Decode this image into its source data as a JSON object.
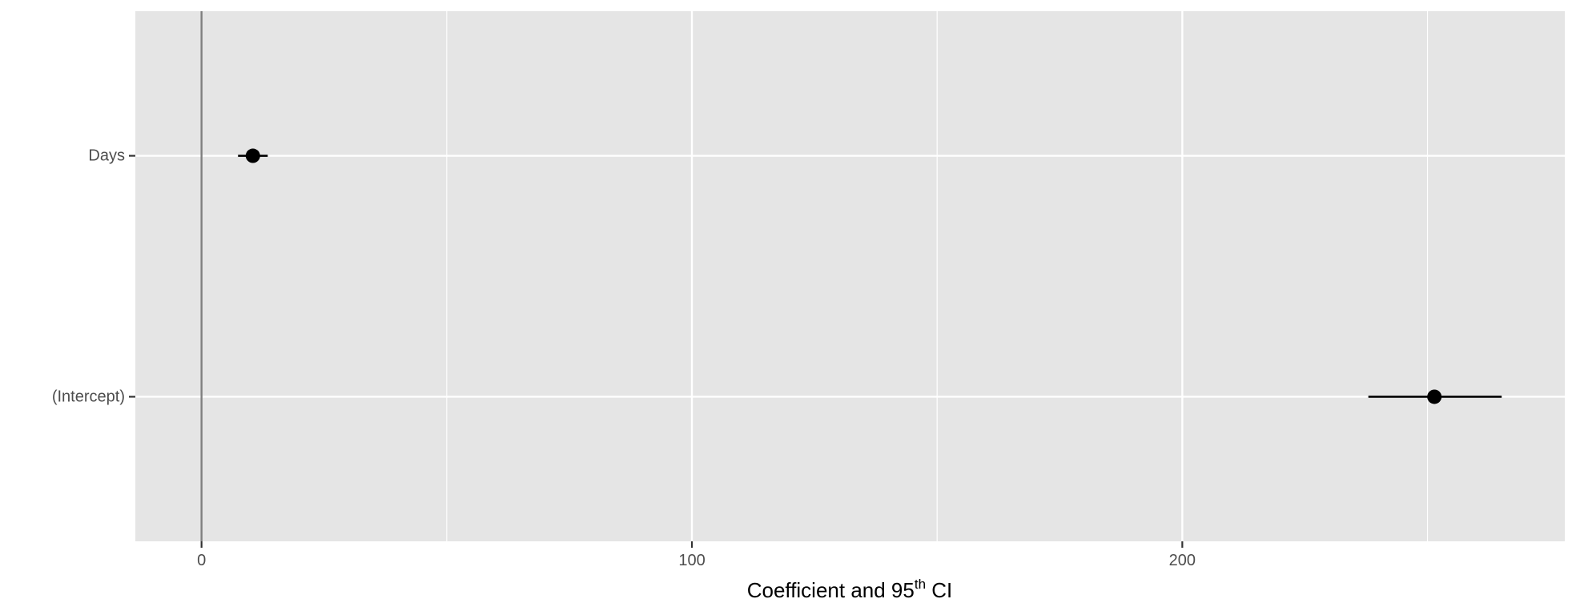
{
  "chart_data": {
    "type": "scatter",
    "subtype": "coefficient-plot",
    "title": "",
    "xlabel_main": "Coefficient and 95",
    "xlabel_sup": "th",
    "xlabel_end": " CI",
    "ylabel": "",
    "xlim": [
      -13.5,
      278
    ],
    "x_major_ticks": [
      0,
      100,
      200
    ],
    "x_tick_labels": [
      "0",
      "100",
      "200"
    ],
    "x_minor_gridlines": [
      50,
      150,
      250
    ],
    "reference_line": 0,
    "grid": true,
    "legend": "none",
    "categories": [
      "Days",
      "(Intercept)"
    ],
    "estimates": [
      10.47,
      251.41
    ],
    "ci_low": [
      7.44,
      237.94
    ],
    "ci_high": [
      13.5,
      265.13
    ],
    "colors": {
      "panel": "#e5e5e5",
      "grid": "#ffffff",
      "reference_line": "#7f7f7f",
      "points": "#000000",
      "tick_text": "#4d4d4d"
    }
  }
}
